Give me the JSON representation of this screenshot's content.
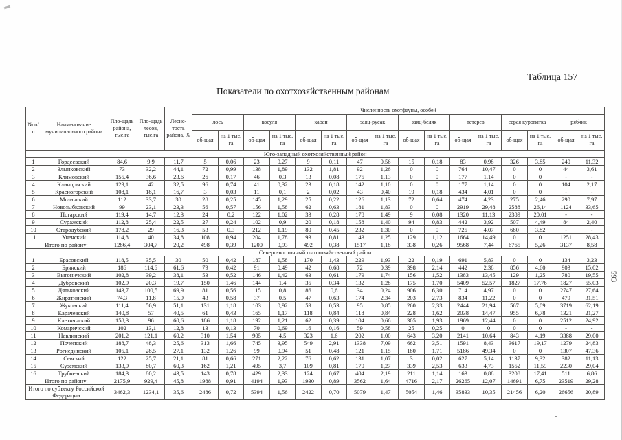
{
  "page": {
    "table_label": "Таблица 157",
    "title": "Показатели по охотхозяйственным районам",
    "page_number": "593"
  },
  "table": {
    "fixed_headers": [
      "№ п/п",
      "Наименование муниципального района",
      "Пло-щадь района, тыс.га",
      "Пло-щадь лесов, тыс.га",
      "Лесис-тость района, %"
    ],
    "fauna_header": "Численность охотфауны, особей",
    "species": [
      "лось",
      "косуля",
      "кабан",
      "заяц-русак",
      "заяц-беляк",
      "тетерев",
      "серая куропатка",
      "рябчик"
    ],
    "subcols": [
      "об-щая",
      "на 1 тыс. га"
    ],
    "total_label": "Итого по району:",
    "sections": [
      {
        "title": "Юго-западный охотхозяйственный район",
        "rows": [
          {
            "num": "1",
            "name": "Гордеевский",
            "v": [
              "84,6",
              "9,9",
              "11,7",
              "5",
              "0,06",
              "23",
              "0,27",
              "9",
              "0,11",
              "47",
              "0,56",
              "15",
              "0,18",
              "83",
              "0,98",
              "326",
              "3,85",
              "240",
              "11,32"
            ]
          },
          {
            "num": "2",
            "name": "Злынковский",
            "v": [
              "73",
              "32,2",
              "44,1",
              "72",
              "0,99",
              "138",
              "1,89",
              "132",
              "1,81",
              "92",
              "1,26",
              "0",
              "0",
              "764",
              "10,47",
              "0",
              "0",
              "44",
              "3,61"
            ]
          },
          {
            "num": "3",
            "name": "Климовский",
            "v": [
              "155,4",
              "36,6",
              "23,6",
              "26",
              "0,17",
              "46",
              "0,3",
              "13",
              "0,08",
              "175",
              "1,13",
              "0",
              "0",
              "177",
              "1,14",
              "0",
              "0",
              "-",
              "-"
            ]
          },
          {
            "num": "4",
            "name": "Клинцовский",
            "v": [
              "129,1",
              "42",
              "32,5",
              "96",
              "0,74",
              "41",
              "0,32",
              "23",
              "0,18",
              "142",
              "1,10",
              "0",
              "0",
              "177",
              "1,14",
              "0",
              "0",
              "104",
              "2,17"
            ]
          },
          {
            "num": "5",
            "name": "Красногорский",
            "v": [
              "108,1",
              "18,1",
              "16,7",
              "3",
              "0,03",
              "11",
              "0,1",
              "2",
              "0,02",
              "43",
              "0,40",
              "19",
              "0,18",
              "434",
              "4,01",
              "0",
              "0",
              "-",
              "-"
            ]
          },
          {
            "num": "6",
            "name": "Мглинский",
            "v": [
              "112",
              "33,7",
              "30",
              "28",
              "0,25",
              "145",
              "1,29",
              "25",
              "0,22",
              "126",
              "1,13",
              "72",
              "0,64",
              "474",
              "4,23",
              "275",
              "2,46",
              "290",
              "7,97"
            ]
          },
          {
            "num": "7",
            "name": "Новозыбковский",
            "v": [
              "99",
              "23,1",
              "23,3",
              "56",
              "0,57",
              "156",
              "1,58",
              "62",
              "0,63",
              "181",
              "1,83",
              "0",
              "0",
              "2919",
              "29,48",
              "2588",
              "26,14",
              "1124",
              "33,65"
            ]
          },
          {
            "num": "8",
            "name": "Погарский",
            "v": [
              "119,4",
              "14,7",
              "12,3",
              "24",
              "0,2",
              "122",
              "1,02",
              "33",
              "0,28",
              "178",
              "1,49",
              "9",
              "0,08",
              "1320",
              "11,13",
              "2389",
              "20,01",
              "-",
              "-"
            ]
          },
          {
            "num": "9",
            "name": "Суражский",
            "v": [
              "112,8",
              "25,4",
              "22,5",
              "27",
              "0,24",
              "102",
              "0,9",
              "20",
              "0,18",
              "158",
              "1,40",
              "94",
              "0,83",
              "442",
              "3,92",
              "507",
              "4,49",
              "84",
              "2,40"
            ]
          },
          {
            "num": "10",
            "name": "Стародубский",
            "v": [
              "178,2",
              "29",
              "16,3",
              "53",
              "0,3",
              "212",
              "1,19",
              "80",
              "0,45",
              "232",
              "1,30",
              "0",
              "0",
              "725",
              "4,07",
              "680",
              "3,82",
              "-",
              "-"
            ]
          },
          {
            "num": "11",
            "name": "Унечский",
            "v": [
              "114,8",
              "40",
              "34,8",
              "108",
              "0,94",
              "204",
              "1,78",
              "93",
              "0,81",
              "143",
              "1,25",
              "129",
              "1,12",
              "1664",
              "14,49",
              "0",
              "0",
              "1251",
              "28,43"
            ]
          }
        ],
        "total": [
          "1286,4",
          "304,7",
          "20,2",
          "498",
          "0,39",
          "1200",
          "0,93",
          "492",
          "0,38",
          "1517",
          "1,18",
          "338",
          "0,26",
          "9568",
          "7,44",
          "6765",
          "5,26",
          "3137",
          "8,58"
        ]
      },
      {
        "title": "Северо-восточный охотхозяйственный район",
        "rows": [
          {
            "num": "1",
            "name": "Брасовский",
            "v": [
              "118,5",
              "35,5",
              "30",
              "50",
              "0,42",
              "187",
              "1,58",
              "170",
              "1,43",
              "229",
              "1,93",
              "22",
              "0,19",
              "691",
              "5,83",
              "0",
              "0",
              "134",
              "3,23"
            ]
          },
          {
            "num": "2",
            "name": "Брянский",
            "v": [
              "186",
              "114,6",
              "61,6",
              "79",
              "0,42",
              "91",
              "0,49",
              "42",
              "0,68",
              "72",
              "0,39",
              "398",
              "2,14",
              "442",
              "2,38",
              "856",
              "4,60",
              "903",
              "15,02"
            ]
          },
          {
            "num": "3",
            "name": "Выгоничский",
            "v": [
              "102,8",
              "39,2",
              "38,1",
              "53",
              "0,52",
              "146",
              "1,42",
              "63",
              "0,61",
              "179",
              "1,74",
              "156",
              "1,52",
              "1383",
              "13,45",
              "129",
              "1,25",
              "780",
              "19,55"
            ]
          },
          {
            "num": "4",
            "name": "Дубровский",
            "v": [
              "102,9",
              "20,3",
              "19,7",
              "150",
              "1,46",
              "144",
              "1,4",
              "35",
              "0,34",
              "132",
              "1,28",
              "175",
              "1,70",
              "5409",
              "52,57",
              "1827",
              "17,76",
              "1827",
              "55,03"
            ]
          },
          {
            "num": "5",
            "name": "Дятьковский",
            "v": [
              "143,7",
              "100,5",
              "69,9",
              "81",
              "0,56",
              "115",
              "0,8",
              "86",
              "0,6",
              "34",
              "0,24",
              "906",
              "6,30",
              "714",
              "4,97",
              "0",
              "0",
              "2747",
              "27,64"
            ]
          },
          {
            "num": "6",
            "name": "Жирятинский",
            "v": [
              "74,3",
              "11,8",
              "15,9",
              "43",
              "0,58",
              "37",
              "0,5",
              "47",
              "0,63",
              "174",
              "2,34",
              "203",
              "2,73",
              "834",
              "11,22",
              "0",
              "0",
              "479",
              "31,51"
            ]
          },
          {
            "num": "7",
            "name": "Жуковский",
            "v": [
              "111,4",
              "56,9",
              "51,1",
              "131",
              "1,18",
              "103",
              "0,92",
              "59",
              "0,53",
              "95",
              "0,85",
              "260",
              "2,33",
              "2444",
              "21,94",
              "567",
              "5,09",
              "3719",
              "62,19"
            ]
          },
          {
            "num": "8",
            "name": "Карачевский",
            "v": [
              "140,8",
              "57",
              "40,5",
              "61",
              "0,43",
              "165",
              "1,17",
              "118",
              "0,84",
              "118",
              "0,84",
              "228",
              "1,62",
              "2038",
              "14,47",
              "955",
              "6,78",
              "1321",
              "21,27"
            ]
          },
          {
            "num": "9",
            "name": "Клетнянский",
            "v": [
              "158,3",
              "96",
              "60,6",
              "186",
              "1,18",
              "192",
              "1,21",
              "62",
              "0,39",
              "104",
              "0,66",
              "305",
              "1,93",
              "1969",
              "12,44",
              "0",
              "0",
              "2512",
              "24,92"
            ]
          },
          {
            "num": "10",
            "name": "Комаричский",
            "v": [
              "102",
              "13,1",
              "12,8",
              "13",
              "0,13",
              "70",
              "0,69",
              "16",
              "0,16",
              "59",
              "0,58",
              "25",
              "0,25",
              "0",
              "0",
              "0",
              "0",
              "-",
              "-"
            ]
          },
          {
            "num": "11",
            "name": "Навлинский",
            "v": [
              "201,2",
              "121,1",
              "60,2",
              "310",
              "1,54",
              "905",
              "4,5",
              "323",
              "1,6",
              "202",
              "1,00",
              "643",
              "3,20",
              "2141",
              "10,64",
              "843",
              "4,19",
              "3388",
              "29,00"
            ]
          },
          {
            "num": "12",
            "name": "Почепский",
            "v": [
              "188,7",
              "48,3",
              "25,6",
              "313",
              "1,66",
              "745",
              "3,95",
              "549",
              "2,91",
              "1338",
              "7,09",
              "662",
              "3,51",
              "1591",
              "8,43",
              "3617",
              "19,17",
              "1279",
              "24,83"
            ]
          },
          {
            "num": "13",
            "name": "Рогнединский",
            "v": [
              "105,1",
              "28,5",
              "27,1",
              "132",
              "1,26",
              "99",
              "0,94",
              "51",
              "0,48",
              "121",
              "1,15",
              "180",
              "1,71",
              "5186",
              "49,34",
              "0",
              "0",
              "1307",
              "47,36"
            ]
          },
          {
            "num": "14",
            "name": "Севский",
            "v": [
              "122",
              "25,7",
              "21,1",
              "81",
              "0,66",
              "271",
              "2,22",
              "76",
              "0,62",
              "131",
              "1,07",
              "3",
              "0,02",
              "627",
              "5,14",
              "1137",
              "9,32",
              "382",
              "11,13"
            ]
          },
          {
            "num": "15",
            "name": "Суземский",
            "v": [
              "133,9",
              "80,7",
              "60,3",
              "162",
              "1,21",
              "495",
              "3,7",
              "109",
              "0,81",
              "170",
              "1,27",
              "339",
              "2,53",
              "633",
              "4,73",
              "1552",
              "11,59",
              "2230",
              "29,04"
            ]
          },
          {
            "num": "16",
            "name": "Трубчевский",
            "v": [
              "184,3",
              "80,2",
              "43,5",
              "143",
              "0,78",
              "429",
              "2,33",
              "124",
              "0,67",
              "404",
              "2,19",
              "211",
              "1,14",
              "163",
              "0,88",
              "3208",
              "17,41",
              "511",
              "6,86"
            ]
          }
        ],
        "total": [
          "2175,9",
          "929,4",
          "45,8",
          "1988",
          "0,91",
          "4194",
          "1,93",
          "1930",
          "0,89",
          "3562",
          "1,64",
          "4716",
          "2,17",
          "26265",
          "12,07",
          "14691",
          "6,75",
          "23519",
          "29,28"
        ]
      }
    ],
    "grand_total": {
      "label": "Итого по субъекту Российской Федерации",
      "values": [
        "3462,3",
        "1234,1",
        "35,6",
        "2486",
        "0,72",
        "5394",
        "1,56",
        "2422",
        "0,70",
        "5079",
        "1,47",
        "5054",
        "1,46",
        "35833",
        "10,35",
        "21456",
        "6,20",
        "26656",
        "20,89"
      ]
    }
  }
}
